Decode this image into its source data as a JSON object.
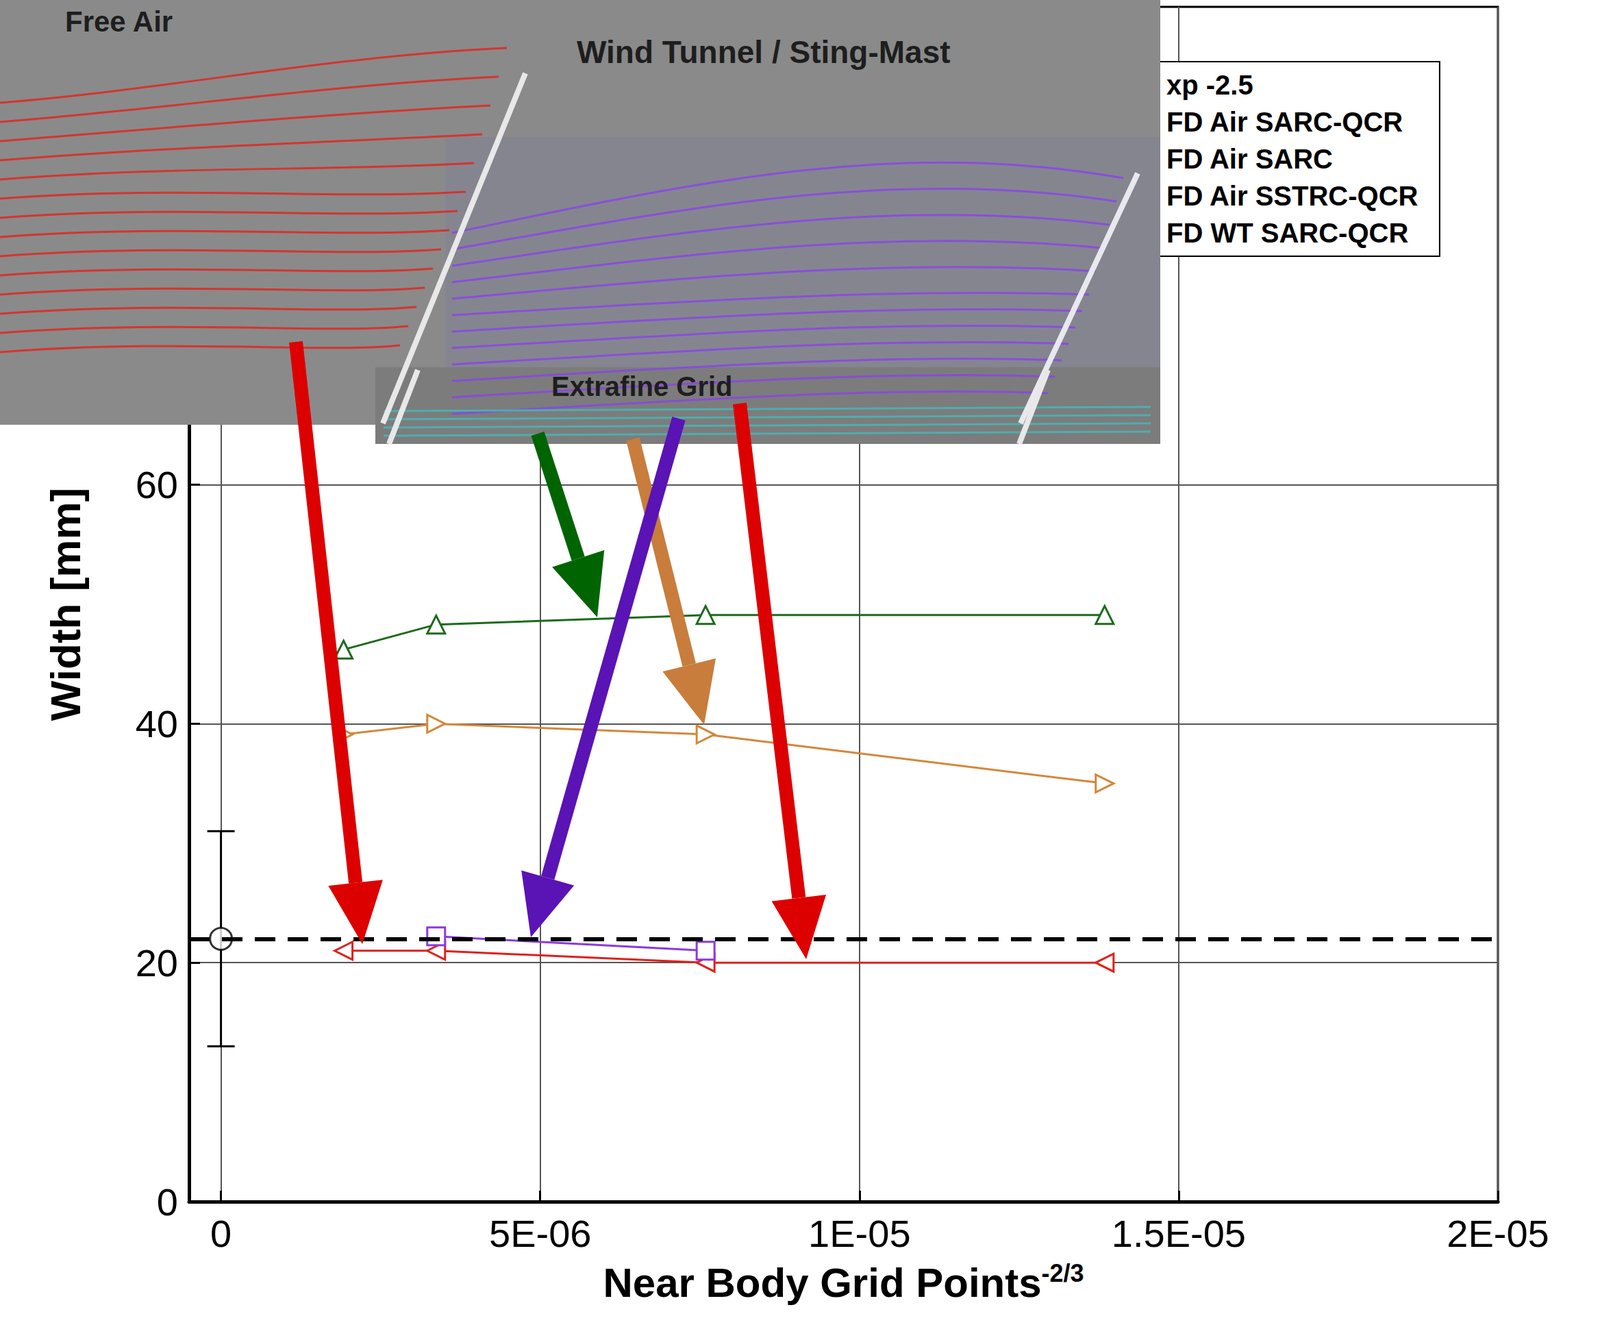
{
  "chart_data": {
    "type": "line",
    "xlabel": {
      "text": "Near Body Grid Points",
      "superscript": "-2/3"
    },
    "ylabel": "Width [mm]",
    "xlim": [
      -5e-07,
      2e-05
    ],
    "xticks": [
      0,
      {
        "value": 5e-06,
        "label": "5E-06"
      },
      {
        "value": 1e-05,
        "label": "1E-05"
      },
      {
        "value": 1.5e-05,
        "label": "1.5E-05"
      },
      {
        "value": 2e-05,
        "label": "2E-05"
      }
    ],
    "ylim": [
      0,
      100
    ],
    "yticks": [
      0,
      20,
      40,
      60
    ],
    "grid": true,
    "legend": "top-right",
    "series": [
      {
        "name": "xp -2.5",
        "type": "scatter",
        "color": "#000000",
        "marker": "circle",
        "x": [
          0
        ],
        "values": [
          22
        ],
        "error_low": [
          13
        ],
        "error_high": [
          31
        ],
        "reference_line": {
          "y": 22,
          "line_style": "dashed"
        }
      },
      {
        "name": "FD Air SARC-QCR",
        "color": "#e0201c",
        "marker": "triangle-left",
        "line_style": "solid",
        "x": [
          1.92e-06,
          3.37e-06,
          7.59e-06,
          1.384e-05
        ],
        "values": [
          21.0,
          21.0,
          20.0,
          20.0
        ]
      },
      {
        "name": "FD Air SARC",
        "color": "#1c6b1c",
        "marker": "triangle-up",
        "line_style": "solid",
        "x": [
          1.92e-06,
          3.37e-06,
          7.59e-06,
          1.384e-05
        ],
        "values": [
          46.2,
          48.3,
          49.1,
          49.1
        ]
      },
      {
        "name": "FD Air SSTRC-QCR",
        "color": "#d4873a",
        "marker": "triangle-right",
        "line_style": "solid",
        "x": [
          1.92e-06,
          3.37e-06,
          7.59e-06,
          1.384e-05
        ],
        "values": [
          39.1,
          40.0,
          39.1,
          35.0
        ]
      },
      {
        "name": "FD WT SARC-QCR",
        "color": "#8a3ae0",
        "marker": "square",
        "line_style": "solid",
        "x": [
          3.37e-06,
          7.59e-06
        ],
        "values": [
          22.2,
          21.0
        ]
      }
    ]
  },
  "inset": {
    "panels": [
      "Free Air",
      "Wind Tunnel / Sting-Mast",
      "Extrafine Grid"
    ]
  }
}
